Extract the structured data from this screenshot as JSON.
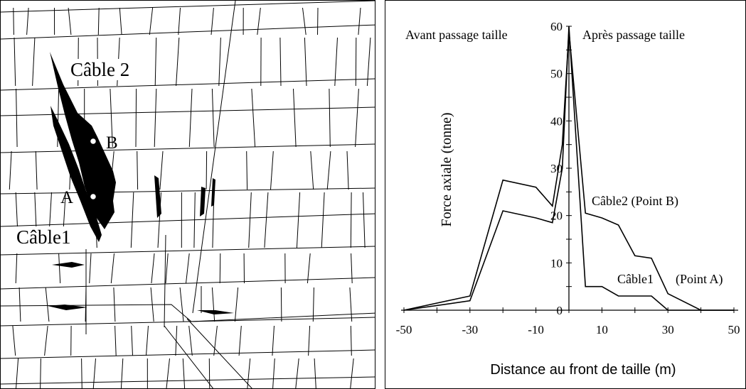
{
  "figure": {
    "left_panel": {
      "labels": {
        "cable2": "Câble 2",
        "cable1": "Câble1",
        "point_a": "A",
        "point_b": "B"
      }
    },
    "right_panel": {
      "annotations": {
        "before": "Avant passage taille",
        "after": "Après passage taille",
        "series_b": "Câble2 (Point B)",
        "series_a_name": "Câble1",
        "series_a_point": "(Point A)"
      }
    }
  },
  "chart_data": {
    "type": "line",
    "title": "",
    "xlabel": "Distance au front de taille (m)",
    "ylabel": "Force axiale (tonne)",
    "xlim": [
      -50,
      50
    ],
    "ylim": [
      0,
      60
    ],
    "xticks": [
      -50,
      -30,
      -10,
      10,
      30,
      50
    ],
    "yticks": [
      0,
      10,
      20,
      30,
      40,
      50,
      60
    ],
    "grid": false,
    "legend": "none",
    "series": [
      {
        "name": "Câble2 (Point B)",
        "x": [
          -50,
          -30,
          -20,
          -10,
          -5,
          -2,
          0,
          5,
          10,
          15,
          20,
          25,
          30,
          40,
          50
        ],
        "y": [
          0,
          3,
          27.5,
          26,
          22,
          35,
          59,
          20.5,
          19.5,
          18,
          11.5,
          11,
          3.5,
          0,
          0
        ]
      },
      {
        "name": "Câble1 (Point A)",
        "x": [
          -50,
          -30,
          -20,
          -10,
          -5,
          -2,
          0,
          5,
          10,
          15,
          20,
          25,
          30,
          50
        ],
        "y": [
          0,
          2,
          21,
          19.5,
          18.5,
          30,
          60,
          5,
          5,
          3,
          3,
          3,
          0,
          0
        ]
      }
    ]
  }
}
